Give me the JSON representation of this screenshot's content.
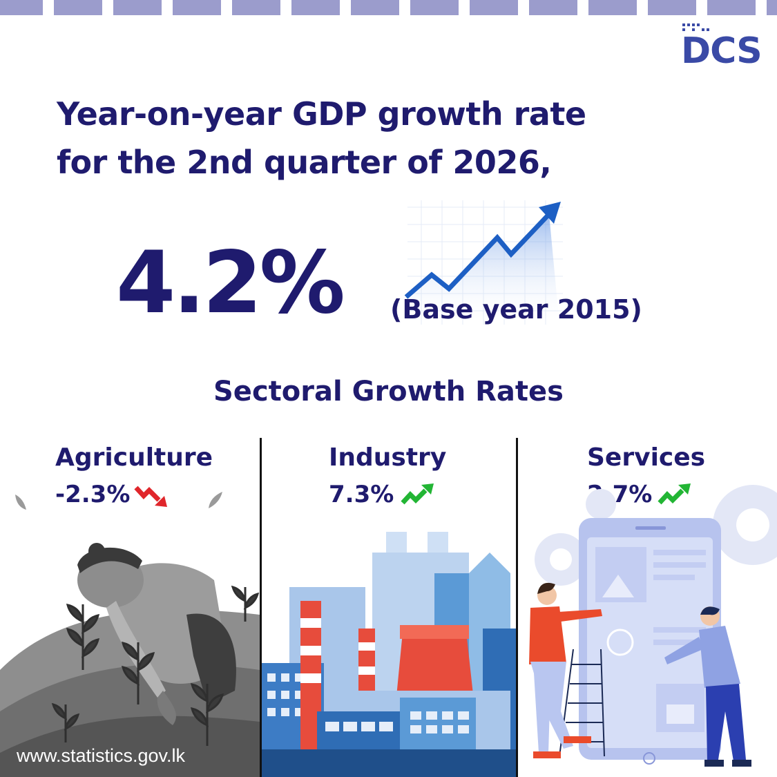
{
  "logo": {
    "text": "DCS"
  },
  "headline": {
    "line1": "Year-on-year GDP growth rate",
    "line2": "for the 2nd quarter of 2026,"
  },
  "gdp": {
    "value": "4.2%",
    "base_year": "(Base year 2015)"
  },
  "section_title": "Sectoral Growth Rates",
  "sectors": [
    {
      "name": "Agriculture",
      "value": "-2.3%",
      "trend": "down",
      "trend_color": "#e0262b",
      "icon": "trend-down-icon"
    },
    {
      "name": "Industry",
      "value": "7.3%",
      "trend": "up",
      "trend_color": "#22b534",
      "icon": "trend-up-icon"
    },
    {
      "name": "Services",
      "value": "2.7%",
      "trend": "up",
      "trend_color": "#22b534",
      "icon": "trend-up-icon"
    }
  ],
  "website": "www.statistics.gov.lk",
  "colors": {
    "primary_navy": "#1f1b6e",
    "logo_blue": "#3a4aa6",
    "strip": "#9b9ccc"
  }
}
